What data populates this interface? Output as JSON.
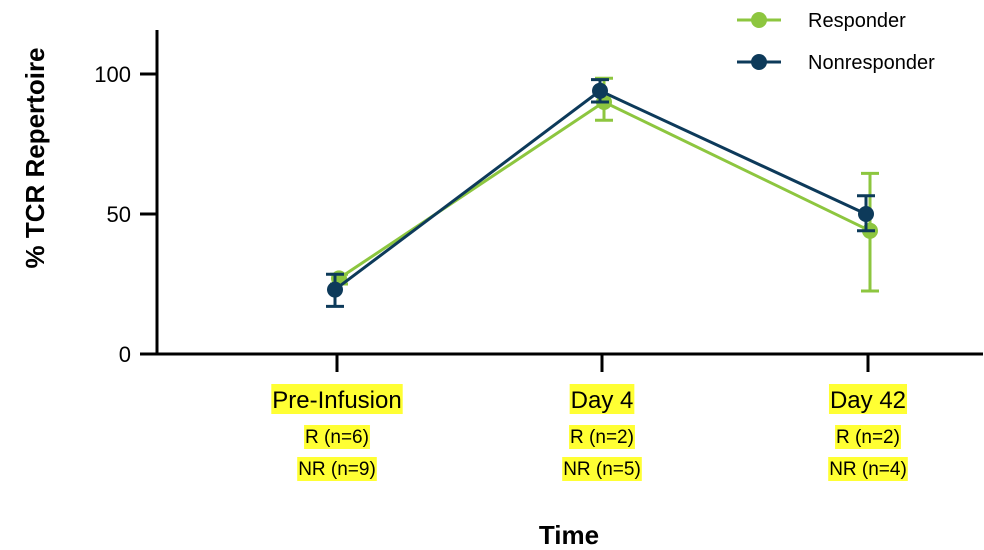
{
  "chart_data": {
    "type": "line",
    "xlabel": "Time",
    "ylabel": "% TCR Repertoire",
    "ylim": [
      0,
      115
    ],
    "yticks": [
      0,
      50,
      100
    ],
    "categories": [
      {
        "label": "Pre-Infusion",
        "sub1": "R (n=6)",
        "sub2": "NR (n=9)"
      },
      {
        "label": "Day 4",
        "sub1": "R (n=2)",
        "sub2": "NR (n=5)"
      },
      {
        "label": "Day 42",
        "sub1": "R (n=2)",
        "sub2": "NR (n=4)"
      }
    ],
    "series": [
      {
        "name": "Responder",
        "color": "#8dc63f",
        "values": [
          27,
          90,
          44
        ],
        "err_low": [
          25,
          83.5,
          22.5
        ],
        "err_high": [
          28.5,
          98.5,
          64.5
        ]
      },
      {
        "name": "Nonresponder",
        "color": "#0d3a5a",
        "values": [
          23,
          94,
          50
        ],
        "err_low": [
          17,
          90,
          44
        ],
        "err_high": [
          28.5,
          98,
          56.5
        ]
      }
    ],
    "category_highlight": "#ffff33",
    "legend_position": "top-right",
    "grid": false
  }
}
